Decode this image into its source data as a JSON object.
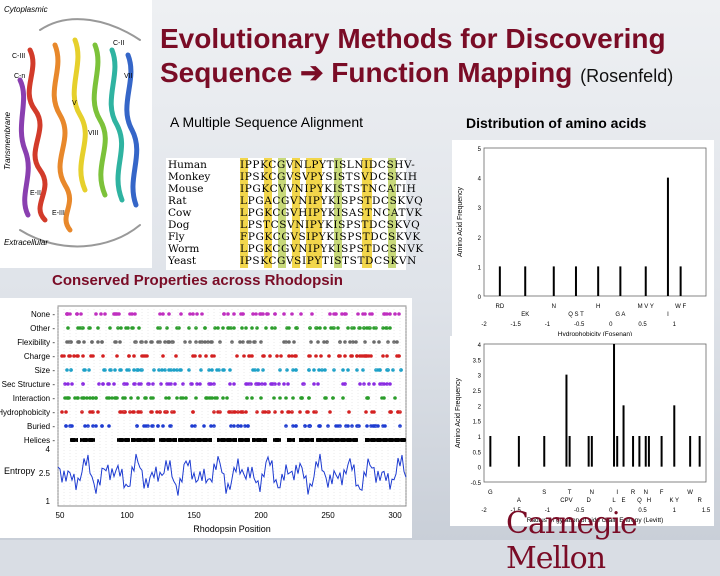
{
  "title_line1": "Evolutionary Methods for Discovering",
  "title_line2": "Sequence ",
  "title_line2b": " Function Mapping",
  "title_author": "(Rosenfeld)",
  "msa_heading": "A Multiple Sequence Alignment",
  "dist_heading": "Distribution of amino acids",
  "conserved_heading": "Conserved Properties across Rhodopsin",
  "protein_labels": {
    "cytoplasmic": "Cytoplasmic",
    "transmembrane": "Transmembrane",
    "extracellular": "Extracellular",
    "c_i": "C-II",
    "c_iii": "C-III",
    "c_n": "C-n",
    "v": "V",
    "viii": "VIII",
    "vii": "VII",
    "e_ii": "E-II",
    "e_iii": "E-III"
  },
  "msa": [
    {
      "species": "Human",
      "seq": "IPPKCGVNLPYTISLNIDCSHV-"
    },
    {
      "species": "Monkey",
      "seq": "IPSKCGVSVPYSISTSVDCSKIH"
    },
    {
      "species": "Mouse",
      "seq": "IPGKCVVNIPYKISTSTNCATIH"
    },
    {
      "species": "Rat",
      "seq": "LPGACGVNIPYKISPSTDCSKVQ"
    },
    {
      "species": "Cow",
      "seq": "LPGKCGVHIPYKISASTNCATVK"
    },
    {
      "species": "Dog",
      "seq": "LPSTCSVNIPYKISPSTDCSKVQ"
    },
    {
      "species": "Fly",
      "seq": "FPGKCGVSIPYKISPSTDCSKVK"
    },
    {
      "species": "Worm",
      "seq": "LPGKCGVNIPYKISPSTDCSNVK"
    },
    {
      "species": "Yeast",
      "seq": "IPSKCGVSIPYTISTSTDCSKVN"
    }
  ],
  "msa_species_list": "Human Monkey Mouse Rat Cow Dog Fly Worm Yeast",
  "properties_plot": {
    "rows": [
      "None",
      "Other",
      "Flexibility",
      "Charge",
      "Size",
      "Sec Structure",
      "Interaction",
      "Hydrophobicity",
      "Buried",
      "Helices"
    ],
    "entropy_label": "Entropy",
    "entropy_ticks": [
      "4",
      "2.5",
      "1"
    ],
    "xlabel": "Rhodopsin Position",
    "xticks": [
      "50",
      "100",
      "150",
      "200",
      "250",
      "300"
    ]
  },
  "chart_data": [
    {
      "type": "bar",
      "xlabel": "Hydrophobicity (Fosenan)",
      "ylabel": "Amino Acid Frequency",
      "ylim": [
        0,
        5
      ],
      "yticks": [
        "0",
        "1",
        "2",
        "3",
        "4",
        "5"
      ],
      "xticks": [
        "-2",
        "-1.5",
        "-1",
        "-0.5",
        "0",
        "0.5",
        "1"
      ],
      "category_labels": [
        "RD",
        "EK",
        "N",
        "Q S T",
        "H",
        "G A",
        "M V Y",
        "I",
        "W F"
      ],
      "x": [
        -1.75,
        -1.35,
        -0.9,
        -0.55,
        -0.2,
        0.15,
        0.55,
        0.9,
        1.1
      ],
      "values": [
        1,
        1,
        1,
        1,
        1,
        1,
        1,
        4,
        1
      ]
    },
    {
      "type": "bar",
      "xlabel": "Radius of gyration of side chain Entropy (Levitt)",
      "ylabel": "Amino Acid Frequency",
      "ylim": [
        -0.5,
        4
      ],
      "yticks": [
        "-0.5",
        "0",
        "0.5",
        "1",
        "1.5",
        "2",
        "2.5",
        "3",
        "3.5",
        "4"
      ],
      "xticks": [
        "-2",
        "-1.5",
        "-1",
        "-0.5",
        "0",
        "0.5",
        "1",
        "1.5"
      ],
      "category_labels": [
        "G",
        "A",
        "S",
        "CPV",
        "T",
        "D",
        "N",
        "L",
        "I",
        "E",
        "R",
        "Q",
        "N",
        "H",
        "F",
        "K Y",
        "W",
        "R"
      ],
      "x": [
        -1.9,
        -1.45,
        -1.05,
        -0.7,
        -0.65,
        -0.35,
        -0.3,
        0.05,
        0.1,
        0.2,
        0.35,
        0.45,
        0.55,
        0.6,
        0.8,
        1.0,
        1.25,
        1.4
      ],
      "values": [
        1,
        1,
        1,
        3,
        1,
        1,
        1,
        4,
        1,
        2,
        1,
        1,
        1,
        1,
        1,
        2,
        1,
        1
      ]
    }
  ],
  "logo_text": "Carnegie Mellon",
  "colors": {
    "title": "#7a0c26",
    "accent_green": "#2a9d2a",
    "accent_purple": "#8a2b8a",
    "accent_red": "#d42020",
    "accent_blue": "#1d3bd1"
  }
}
